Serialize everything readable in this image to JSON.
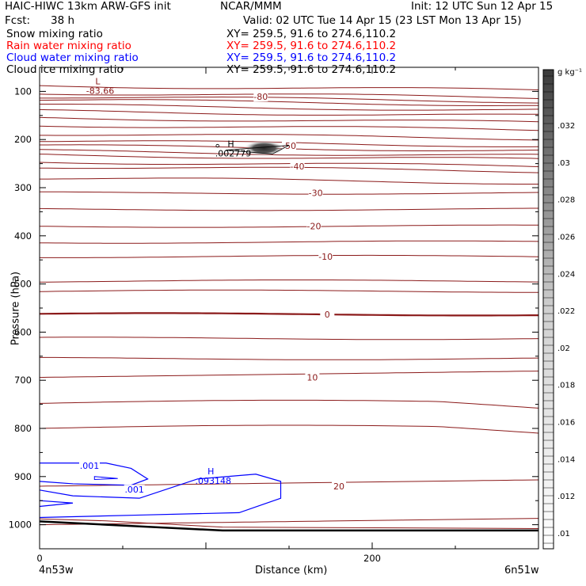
{
  "header": {
    "model": "HAIC-HIWC 13km ARW-GFS init",
    "org": "NCAR/MMM",
    "init": "Init: 12 UTC Sun 12 Apr 15",
    "fcst_label": "Fcst:",
    "fcst_value": "38 h",
    "valid": "Valid: 02 UTC Tue 14 Apr 15 (23 LST Mon 13 Apr 15)",
    "fields": [
      {
        "name": "Snow mixing ratio",
        "xy": "XY= 259.5, 91.6 to 274.6,110.2",
        "color": "#000000"
      },
      {
        "name": "Rain water mixing ratio",
        "xy": "XY= 259.5, 91.6 to 274.6,110.2",
        "color": "#ff0000"
      },
      {
        "name": "Cloud water mixing ratio",
        "xy": "XY= 259.5, 91.6 to 274.6,110.2",
        "color": "#0000ff"
      },
      {
        "name": "Cloud ice mixing ratio",
        "xy": "XY= 259.5, 91.6 to 274.6,110.2",
        "color": "#000000"
      }
    ]
  },
  "chart_data": {
    "type": "contour",
    "xlabel": "Distance (km)",
    "ylabel": "Pressure (hPa)",
    "xlim": [
      0,
      300
    ],
    "ylim": [
      1050,
      50
    ],
    "x_ticks": [
      0,
      200
    ],
    "y_ticks": [
      100,
      200,
      300,
      400,
      500,
      600,
      700,
      800,
      900,
      1000
    ],
    "endpoints": {
      "left": "4n53w",
      "right": "6n51w"
    },
    "colorbar": {
      "unit": "g kg⁻¹",
      "labels": [
        ".01",
        ".012",
        ".014",
        ".016",
        ".018",
        ".02",
        ".022",
        ".024",
        ".026",
        ".028",
        ".03",
        ".032"
      ]
    },
    "contour_labels": [
      {
        "text": "-80",
        "x": 133,
        "p": 111
      },
      {
        "text": "-50",
        "x": 150,
        "p": 213
      },
      {
        "text": "-40",
        "x": 155,
        "p": 256
      },
      {
        "text": "-30",
        "x": 166,
        "p": 311
      },
      {
        "text": "-20",
        "x": 165,
        "p": 380
      },
      {
        "text": "-10",
        "x": 172,
        "p": 443
      },
      {
        "text": "0",
        "x": 173,
        "p": 563
      },
      {
        "text": "10",
        "x": 164,
        "p": 694
      },
      {
        "text": "20",
        "x": 180,
        "p": 920
      }
    ],
    "extrema": [
      {
        "kind": "L",
        "value": "-83.66",
        "x": 35,
        "p": 85,
        "color": "#8b1a1a"
      },
      {
        "kind": "H",
        "value": ".002779",
        "x": 115,
        "p": 215,
        "color": "#000000"
      },
      {
        "kind": "H",
        "value": ".093148",
        "x": 103,
        "p": 895,
        "color": "#0000ff"
      }
    ],
    "cloud_water_labels": [
      {
        "text": ".001",
        "x": 30,
        "p": 877
      },
      {
        "text": ".001",
        "x": 57,
        "p": 927
      }
    ],
    "temperature_levels_p": [
      88,
      103,
      111,
      118,
      129,
      141,
      155,
      170,
      188,
      203,
      213,
      224,
      232,
      246,
      256,
      280,
      311,
      345,
      380,
      413,
      443,
      494,
      515,
      563,
      613,
      655,
      694,
      748,
      800,
      920,
      1000
    ],
    "temperature_bold_level_p": 563
  }
}
